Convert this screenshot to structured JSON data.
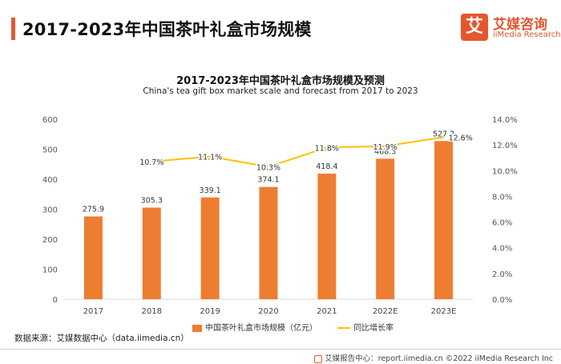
{
  "header": {
    "title": "2017-2023年中国茶叶礼盒市场规模",
    "logo_mark": "艾",
    "logo_cn": "艾媒咨询",
    "logo_en": "iiMedia Research"
  },
  "colors": {
    "accent": "#e4572e",
    "bar": "#ed7d31",
    "line": "#ffc000"
  },
  "chart_data": {
    "type": "bar",
    "title": "2017-2023年中国茶叶礼盒市场规模及预测",
    "subtitle": "China's tea gift box market scale and forecast from 2017 to 2023",
    "categories": [
      "2017",
      "2018",
      "2019",
      "2020",
      "2021",
      "2022E",
      "2023E"
    ],
    "series": [
      {
        "name": "中国茶叶礼盒市场规模（亿元）",
        "type": "bar",
        "axis": "left",
        "values": [
          275.9,
          305.3,
          339.1,
          374.1,
          418.4,
          468.3,
          527.2
        ],
        "labels": [
          "275.9",
          "305.3",
          "339.1",
          "374.1",
          "418.4",
          "468.3",
          "527.2"
        ]
      },
      {
        "name": "同比增长率",
        "type": "line",
        "axis": "right",
        "values": [
          null,
          10.7,
          11.1,
          10.3,
          11.8,
          11.9,
          12.6
        ],
        "labels": [
          "",
          "10.7%",
          "11.1%",
          "10.3%",
          "11.8%",
          "11.9%",
          "12.6%"
        ]
      }
    ],
    "left_axis": {
      "ylim": [
        0,
        600
      ],
      "ticks": [
        "0",
        "100",
        "200",
        "300",
        "400",
        "500",
        "600"
      ]
    },
    "right_axis": {
      "ylim": [
        0,
        14
      ],
      "ticks": [
        "0.0%",
        "2.0%",
        "4.0%",
        "6.0%",
        "8.0%",
        "10.0%",
        "12.0%",
        "14.0%"
      ]
    },
    "grid": false,
    "legend": "bottom"
  },
  "source": "数据来源：艾媒数据中心（data.iimedia.cn）",
  "footer": "艾媒报告中心：report.iimedia.cn  ©2022  iiMedia Research  Inc"
}
